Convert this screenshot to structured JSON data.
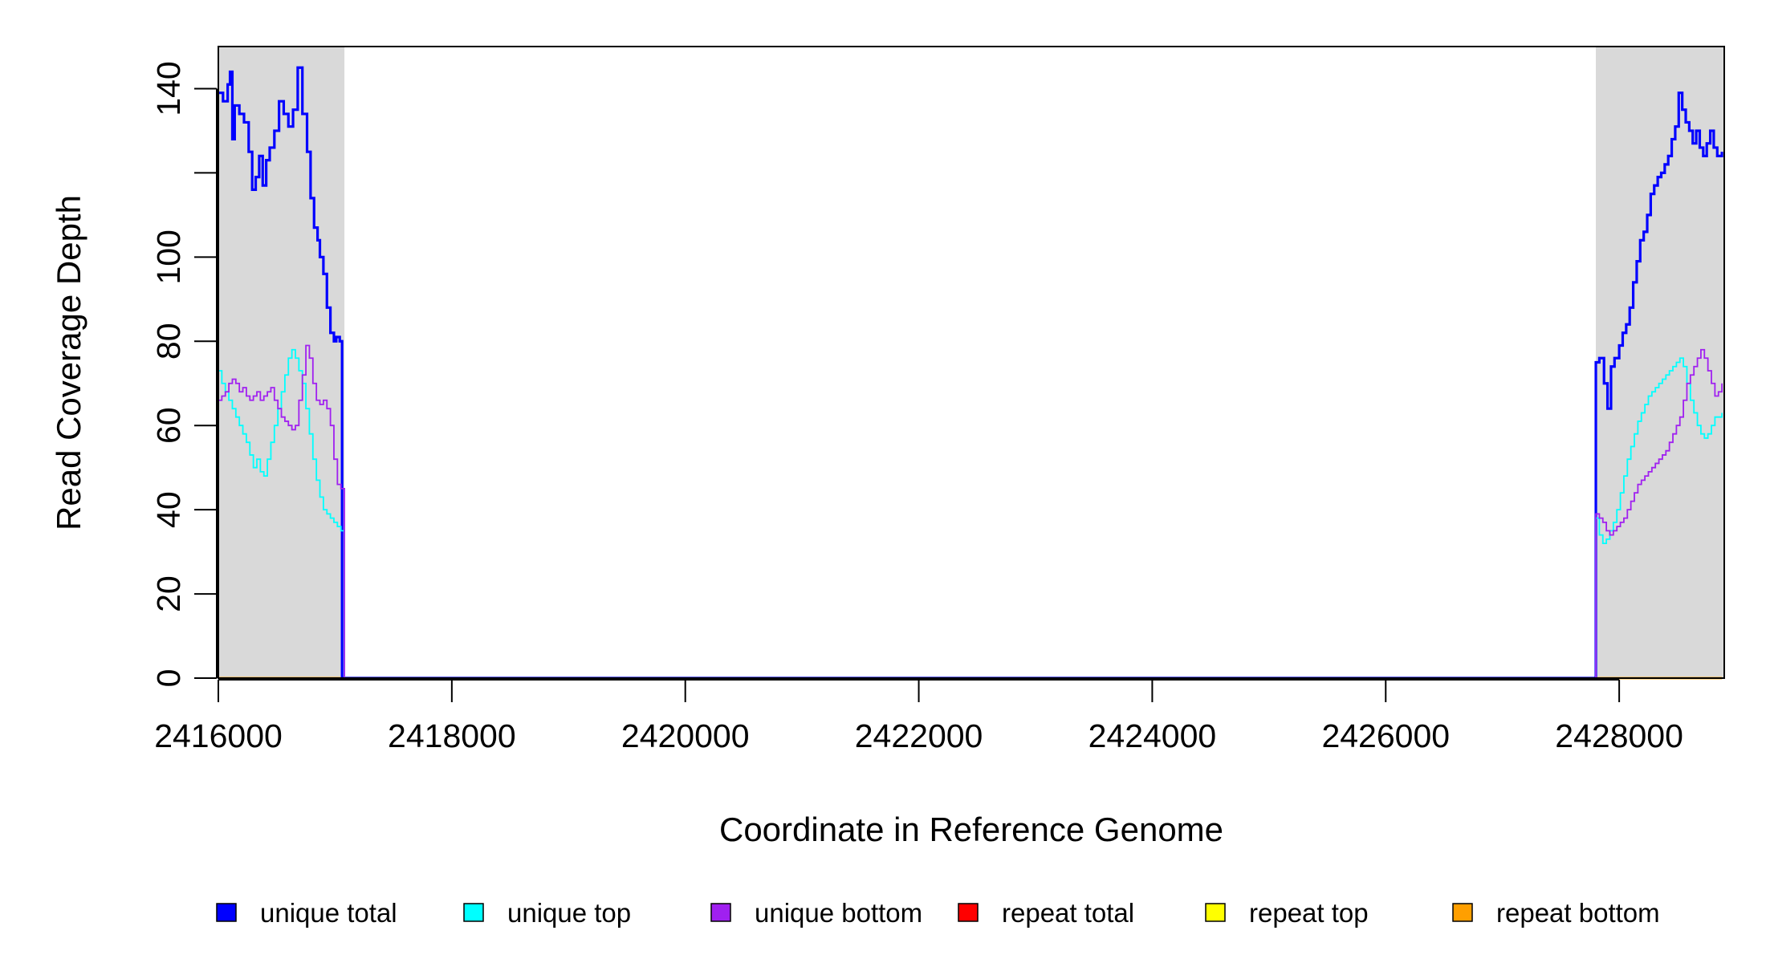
{
  "chart_data": {
    "type": "line",
    "title": "",
    "xlabel": "Coordinate in Reference Genome",
    "ylabel": "Read Coverage Depth",
    "xlim": [
      2416000,
      2428900
    ],
    "ylim": [
      0,
      150
    ],
    "x_ticks": [
      2416000,
      2418000,
      2420000,
      2422000,
      2424000,
      2426000,
      2428000
    ],
    "x_tick_labels": [
      "2416000",
      "2418000",
      "2420000",
      "2422000",
      "2424000",
      "2426000",
      "2428000"
    ],
    "y_ticks": [
      0,
      20,
      40,
      60,
      80,
      100,
      120,
      140
    ],
    "y_tick_labels": [
      "0",
      "20",
      "40",
      "60",
      "80",
      "100",
      "",
      "140"
    ],
    "grid": false,
    "legend_position": "bottom",
    "shaded_regions": [
      {
        "x_start": 2416000,
        "x_end": 2417080,
        "color": "#d9d9d9"
      },
      {
        "x_start": 2427800,
        "x_end": 2428900,
        "color": "#d9d9d9"
      }
    ],
    "series": [
      {
        "name": "unique total",
        "color": "#0000ff",
        "x": [
          2416000,
          2416040,
          2416080,
          2416100,
          2416120,
          2416140,
          2416180,
          2416220,
          2416260,
          2416290,
          2416320,
          2416350,
          2416380,
          2416410,
          2416440,
          2416480,
          2416520,
          2416560,
          2416600,
          2416640,
          2416680,
          2416720,
          2416760,
          2416790,
          2416820,
          2416850,
          2416870,
          2416900,
          2416930,
          2416960,
          2416990,
          2417010,
          2417040,
          2417060,
          2417080,
          2417100,
          2427780,
          2427800,
          2427830,
          2427870,
          2427900,
          2427930,
          2427960,
          2428000,
          2428030,
          2428060,
          2428090,
          2428120,
          2428150,
          2428180,
          2428210,
          2428240,
          2428270,
          2428300,
          2428330,
          2428360,
          2428390,
          2428420,
          2428450,
          2428480,
          2428510,
          2428540,
          2428570,
          2428600,
          2428630,
          2428660,
          2428690,
          2428720,
          2428750,
          2428780,
          2428810,
          2428840,
          2428880
        ],
        "values": [
          139,
          137,
          141,
          144,
          128,
          136,
          134,
          132,
          125,
          116,
          119,
          124,
          117,
          123,
          126,
          130,
          137,
          134,
          131,
          135,
          145,
          134,
          125,
          114,
          107,
          104,
          100,
          96,
          88,
          82,
          80,
          81,
          80,
          0,
          0,
          0,
          0,
          75,
          76,
          70,
          64,
          74,
          76,
          79,
          82,
          84,
          88,
          94,
          99,
          104,
          106,
          110,
          115,
          117,
          119,
          120,
          122,
          124,
          128,
          131,
          139,
          135,
          132,
          130,
          127,
          130,
          126,
          124,
          127,
          130,
          126,
          124,
          125
        ]
      },
      {
        "name": "unique top",
        "color": "#00ffff",
        "x": [
          2416000,
          2416030,
          2416060,
          2416090,
          2416120,
          2416150,
          2416180,
          2416210,
          2416240,
          2416270,
          2416300,
          2416330,
          2416360,
          2416390,
          2416420,
          2416450,
          2416480,
          2416510,
          2416540,
          2416570,
          2416600,
          2416630,
          2416660,
          2416690,
          2416720,
          2416750,
          2416780,
          2416810,
          2416840,
          2416870,
          2416900,
          2416930,
          2416960,
          2416990,
          2417020,
          2417050,
          2417080,
          2417100,
          2427780,
          2427800,
          2427830,
          2427860,
          2427890,
          2427920,
          2427950,
          2427980,
          2428010,
          2428040,
          2428070,
          2428100,
          2428130,
          2428160,
          2428190,
          2428220,
          2428250,
          2428280,
          2428310,
          2428340,
          2428370,
          2428400,
          2428430,
          2428460,
          2428490,
          2428520,
          2428550,
          2428580,
          2428610,
          2428640,
          2428670,
          2428700,
          2428730,
          2428760,
          2428790,
          2428820,
          2428850,
          2428880
        ],
        "values": [
          73,
          70,
          68,
          66,
          64,
          62,
          60,
          58,
          56,
          53,
          50,
          52,
          49,
          48,
          52,
          56,
          60,
          64,
          68,
          72,
          76,
          78,
          76,
          73,
          70,
          64,
          58,
          52,
          47,
          43,
          40,
          39,
          38,
          37,
          36,
          35,
          0,
          0,
          0,
          38,
          34,
          32,
          33,
          35,
          37,
          40,
          44,
          48,
          52,
          55,
          58,
          61,
          63,
          65,
          67,
          68,
          69,
          70,
          71,
          72,
          73,
          74,
          75,
          76,
          74,
          70,
          66,
          63,
          60,
          58,
          57,
          58,
          60,
          62,
          62,
          63
        ]
      },
      {
        "name": "unique bottom",
        "color": "#a020f0",
        "x": [
          2416000,
          2416030,
          2416060,
          2416090,
          2416120,
          2416150,
          2416180,
          2416210,
          2416240,
          2416270,
          2416300,
          2416330,
          2416360,
          2416390,
          2416420,
          2416450,
          2416480,
          2416510,
          2416540,
          2416570,
          2416600,
          2416630,
          2416660,
          2416690,
          2416720,
          2416750,
          2416780,
          2416810,
          2416840,
          2416870,
          2416900,
          2416930,
          2416960,
          2416990,
          2417020,
          2417050,
          2417080,
          2417100,
          2427780,
          2427800,
          2427830,
          2427860,
          2427890,
          2427920,
          2427950,
          2427980,
          2428010,
          2428040,
          2428070,
          2428100,
          2428130,
          2428160,
          2428190,
          2428220,
          2428250,
          2428280,
          2428310,
          2428340,
          2428370,
          2428400,
          2428430,
          2428460,
          2428490,
          2428520,
          2428550,
          2428580,
          2428610,
          2428640,
          2428670,
          2428700,
          2428730,
          2428760,
          2428790,
          2428820,
          2428850,
          2428880
        ],
        "values": [
          66,
          67,
          68,
          70,
          71,
          70,
          68,
          69,
          67,
          66,
          67,
          68,
          66,
          67,
          68,
          69,
          66,
          64,
          62,
          61,
          60,
          59,
          60,
          66,
          72,
          79,
          76,
          70,
          66,
          65,
          66,
          64,
          60,
          52,
          46,
          45,
          0,
          0,
          0,
          39,
          38,
          37,
          35,
          34,
          35,
          36,
          37,
          38,
          40,
          42,
          44,
          46,
          47,
          48,
          49,
          50,
          51,
          52,
          53,
          54,
          56,
          58,
          60,
          62,
          66,
          70,
          72,
          74,
          76,
          78,
          76,
          73,
          70,
          67,
          68,
          70
        ]
      },
      {
        "name": "repeat total",
        "color": "#ff0000",
        "x": [
          2416000,
          2428880
        ],
        "values": [
          0,
          0
        ]
      },
      {
        "name": "repeat top",
        "color": "#ffff00",
        "x": [
          2416000,
          2428880
        ],
        "values": [
          0,
          0
        ]
      },
      {
        "name": "repeat bottom",
        "color": "#ff9f00",
        "x": [
          2416000,
          2428880
        ],
        "values": [
          0,
          0
        ]
      }
    ]
  }
}
